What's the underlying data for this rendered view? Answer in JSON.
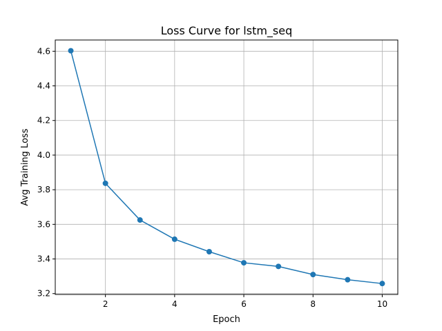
{
  "chart_data": {
    "type": "line",
    "title": "Loss Curve for lstm_seq",
    "xlabel": "Epoch",
    "ylabel": "Avg Training Loss",
    "xlim": [
      0.55,
      10.45
    ],
    "ylim": [
      3.195,
      4.665
    ],
    "xticks": [
      2,
      4,
      6,
      8,
      10
    ],
    "yticks": [
      3.2,
      3.4,
      3.6,
      3.8,
      4.0,
      4.2,
      4.4,
      4.6
    ],
    "grid": true,
    "series": [
      {
        "color": "#1f77b4",
        "marker": "circle",
        "x": [
          1,
          2,
          3,
          4,
          5,
          6,
          7,
          8,
          9,
          10
        ],
        "y": [
          4.603,
          3.837,
          3.625,
          3.514,
          3.442,
          3.378,
          3.357,
          3.31,
          3.28,
          3.258
        ]
      }
    ]
  }
}
